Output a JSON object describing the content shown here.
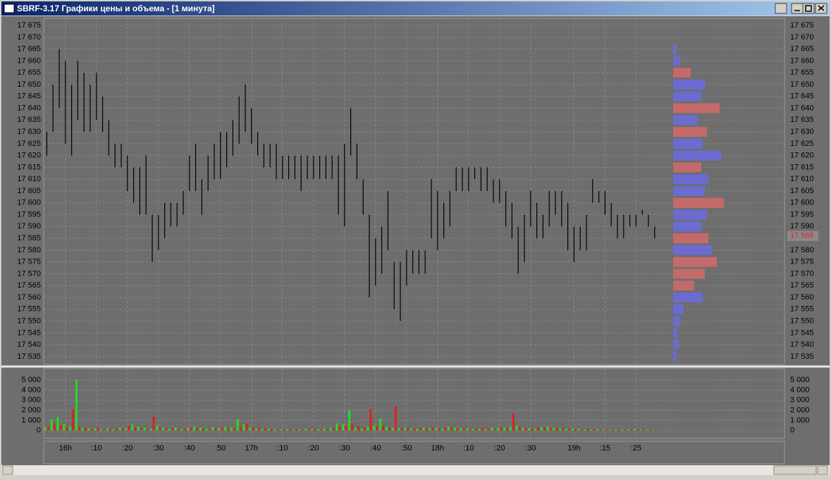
{
  "window": {
    "title": "SBRF-3.17 Графики цены и объема - [1 минута]"
  },
  "chart_data": [
    {
      "type": "price-bars",
      "categories": [
        null,
        null,
        null,
        "16h",
        null,
        null,
        null,
        null,
        ":10",
        null,
        null,
        null,
        null,
        ":20",
        null,
        null,
        null,
        null,
        ":30",
        null,
        null,
        null,
        null,
        ":40",
        null,
        null,
        null,
        null,
        ":50",
        null,
        null,
        null,
        null,
        "17h",
        null,
        null,
        null,
        null,
        ":10",
        null,
        null,
        null,
        null,
        ":20",
        null,
        null,
        null,
        null,
        ":30",
        null,
        null,
        null,
        null,
        ":40",
        null,
        null,
        null,
        null,
        ":50",
        null,
        null,
        null,
        null,
        "18h",
        null,
        null,
        null,
        null,
        ":10",
        null,
        null,
        null,
        null,
        ":20",
        null,
        null,
        null,
        null,
        ":30",
        null,
        null,
        null,
        null,
        null,
        null,
        "19h",
        null,
        null,
        null,
        null,
        ":15",
        null,
        null,
        null,
        null,
        ":25",
        null,
        null,
        null
      ],
      "high": [
        17630,
        17650,
        17665,
        17660,
        17650,
        17660,
        17655,
        17650,
        17655,
        17645,
        17635,
        17625,
        17625,
        17620,
        17615,
        17615,
        17620,
        17595,
        17595,
        17600,
        17600,
        17600,
        17605,
        17620,
        17625,
        17610,
        17620,
        17625,
        17630,
        17630,
        17635,
        17645,
        17650,
        17640,
        17630,
        17625,
        17625,
        17625,
        17620,
        17620,
        17620,
        17620,
        17620,
        17620,
        17620,
        17620,
        17620,
        17620,
        17625,
        17640,
        17625,
        17610,
        17595,
        17585,
        17590,
        17605,
        17575,
        17575,
        17580,
        17580,
        17580,
        17580,
        17610,
        17605,
        17600,
        17605,
        17615,
        17615,
        17615,
        17615,
        17615,
        17615,
        17610,
        17610,
        17605,
        17600,
        17590,
        17595,
        17605,
        17600,
        17595,
        17605,
        17605,
        17605,
        17600,
        17590,
        17590,
        17595,
        17610,
        17605,
        17605,
        17600,
        17595,
        17595,
        17595,
        17595,
        17597,
        17595,
        17590
      ],
      "low": [
        17620,
        17630,
        17640,
        17625,
        17620,
        17635,
        17630,
        17630,
        17635,
        17630,
        17620,
        17615,
        17615,
        17605,
        17600,
        17595,
        17595,
        17575,
        17580,
        17585,
        17590,
        17590,
        17595,
        17605,
        17605,
        17595,
        17605,
        17610,
        17610,
        17615,
        17620,
        17625,
        17630,
        17625,
        17620,
        17615,
        17615,
        17610,
        17610,
        17610,
        17610,
        17605,
        17610,
        17610,
        17610,
        17610,
        17610,
        17595,
        17590,
        17620,
        17610,
        17595,
        17560,
        17565,
        17570,
        17580,
        17555,
        17550,
        17565,
        17570,
        17570,
        17570,
        17585,
        17580,
        17585,
        17590,
        17605,
        17605,
        17605,
        17610,
        17605,
        17605,
        17600,
        17600,
        17590,
        17585,
        17570,
        17575,
        17590,
        17585,
        17585,
        17590,
        17595,
        17590,
        17580,
        17575,
        17580,
        17580,
        17600,
        17600,
        17595,
        17590,
        17585,
        17585,
        17590,
        17590,
        17595,
        17590,
        17585
      ],
      "color": "#000000",
      "ylim": [
        17532,
        17678
      ],
      "yticks": [
        {
          "value": 17535,
          "label": "17 535"
        },
        {
          "value": 17540,
          "label": "17 540"
        },
        {
          "value": 17545,
          "label": "17 545"
        },
        {
          "value": 17550,
          "label": "17 550"
        },
        {
          "value": 17555,
          "label": "17 555"
        },
        {
          "value": 17560,
          "label": "17 560"
        },
        {
          "value": 17565,
          "label": "17 565"
        },
        {
          "value": 17570,
          "label": "17 570"
        },
        {
          "value": 17575,
          "label": "17 575"
        },
        {
          "value": 17580,
          "label": "17 580"
        },
        {
          "value": 17585,
          "label": "17 585"
        },
        {
          "value": 17590,
          "label": "17 590"
        },
        {
          "value": 17595,
          "label": "17 595"
        },
        {
          "value": 17600,
          "label": "17 600"
        },
        {
          "value": 17605,
          "label": "17 605"
        },
        {
          "value": 17610,
          "label": "17 610"
        },
        {
          "value": 17615,
          "label": "17 615"
        },
        {
          "value": 17620,
          "label": "17 620"
        },
        {
          "value": 17625,
          "label": "17 625"
        },
        {
          "value": 17630,
          "label": "17 630"
        },
        {
          "value": 17635,
          "label": "17 635"
        },
        {
          "value": 17640,
          "label": "17 640"
        },
        {
          "value": 17645,
          "label": "17 645"
        },
        {
          "value": 17650,
          "label": "17 650"
        },
        {
          "value": 17655,
          "label": "17 655"
        },
        {
          "value": 17660,
          "label": "17 660"
        },
        {
          "value": 17665,
          "label": "17 665"
        },
        {
          "value": 17670,
          "label": "17 670"
        },
        {
          "value": 17675,
          "label": "17 675"
        }
      ],
      "last_price": {
        "value": 17586,
        "label": "17 586",
        "color": "#e02020"
      },
      "grid": true,
      "profile": {
        "levels": [
          17535,
          17540,
          17545,
          17550,
          17555,
          17560,
          17565,
          17570,
          17575,
          17580,
          17585,
          17590,
          17595,
          17600,
          17605,
          17610,
          17615,
          17620,
          17625,
          17630,
          17635,
          17640,
          17645,
          17650,
          17655,
          17660,
          17665
        ],
        "values": [
          5,
          8,
          6,
          10,
          15,
          42,
          30,
          45,
          62,
          55,
          50,
          40,
          48,
          72,
          45,
          50,
          40,
          68,
          42,
          48,
          35,
          66,
          40,
          45,
          25,
          10,
          5
        ],
        "colors": [
          "#6b6bd0",
          "#6b6bd0",
          "#6b6bd0",
          "#6b6bd0",
          "#6b6bd0",
          "#6b6bd0",
          "#c46a6a",
          "#c46a6a",
          "#c46a6a",
          "#6b6bd0",
          "#c46a6a",
          "#6b6bd0",
          "#6b6bd0",
          "#c46a6a",
          "#6b6bd0",
          "#6b6bd0",
          "#c46a6a",
          "#6b6bd0",
          "#6b6bd0",
          "#c46a6a",
          "#6b6bd0",
          "#c46a6a",
          "#6b6bd0",
          "#6b6bd0",
          "#c46a6a",
          "#6b6bd0",
          "#6b6bd0"
        ]
      }
    },
    {
      "type": "volume-bars",
      "buy": [
        300,
        1100,
        1300,
        600,
        400,
        5000,
        300,
        250,
        200,
        150,
        200,
        150,
        300,
        250,
        600,
        400,
        300,
        200,
        500,
        300,
        200,
        300,
        150,
        250,
        400,
        300,
        200,
        350,
        250,
        400,
        300,
        1100,
        600,
        300,
        200,
        150,
        200,
        150,
        100,
        150,
        100,
        150,
        200,
        100,
        150,
        200,
        300,
        700,
        600,
        2000,
        300,
        200,
        400,
        500,
        1200,
        400,
        300,
        250,
        300,
        200,
        200,
        300,
        250,
        300,
        200,
        400,
        300,
        250,
        200,
        150,
        200,
        150,
        300,
        250,
        300,
        400,
        500,
        300,
        250,
        200,
        350,
        400,
        300,
        250,
        200,
        150,
        200,
        150,
        100,
        150,
        100,
        100,
        80,
        100,
        120,
        150,
        100,
        80,
        60
      ],
      "sell": [
        400,
        700,
        500,
        300,
        2100,
        400,
        300,
        200,
        250,
        150,
        150,
        200,
        200,
        500,
        300,
        250,
        150,
        1400,
        300,
        200,
        250,
        150,
        200,
        300,
        250,
        200,
        150,
        200,
        300,
        200,
        200,
        400,
        700,
        300,
        250,
        200,
        150,
        100,
        150,
        100,
        150,
        100,
        150,
        200,
        100,
        150,
        250,
        400,
        500,
        700,
        400,
        300,
        2100,
        400,
        500,
        300,
        2400,
        300,
        250,
        200,
        250,
        200,
        300,
        200,
        250,
        300,
        200,
        250,
        150,
        200,
        250,
        200,
        150,
        300,
        200,
        1700,
        400,
        300,
        200,
        300,
        300,
        250,
        300,
        200,
        200,
        150,
        100,
        200,
        150,
        100,
        100,
        80,
        100,
        60,
        80,
        100,
        80,
        60,
        50
      ],
      "buy_color": "#22dd22",
      "sell_color": "#e02020",
      "ylim": [
        -500,
        5500
      ],
      "yticks": [
        0,
        {
          "value": 1000,
          "label": "1 000"
        },
        {
          "value": 2000,
          "label": "2 000"
        },
        {
          "value": 3000,
          "label": "3 000"
        },
        {
          "value": 4000,
          "label": "4 000"
        },
        {
          "value": 5000,
          "label": "5 000"
        }
      ],
      "grid": true
    }
  ]
}
